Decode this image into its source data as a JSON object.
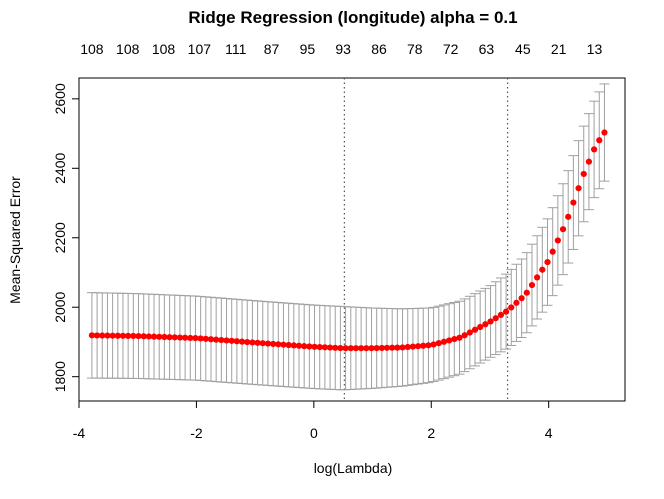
{
  "chart_data": {
    "type": "scatter",
    "title": "Ridge Regression (longitude) alpha = 0.1",
    "xlabel": "log(Lambda)",
    "ylabel": "Mean-Squared Error",
    "xlim": [
      -4.0,
      5.3
    ],
    "ylim": [
      1730,
      2660
    ],
    "x_ticks": [
      -4,
      -2,
      0,
      2,
      4
    ],
    "x_tick_labels": [
      "-4",
      "-2",
      "0",
      "2",
      "4"
    ],
    "y_ticks": [
      1800,
      2000,
      2200,
      2400,
      2600
    ],
    "y_tick_labels": [
      "1800",
      "2000",
      "2200",
      "2400",
      "2600"
    ],
    "top_axis": {
      "positions": [
        -3.78,
        -3.17,
        -2.56,
        -1.95,
        -1.33,
        -0.72,
        -0.11,
        0.5,
        1.11,
        1.72,
        2.33,
        2.94,
        3.56,
        4.17,
        4.78
      ],
      "labels": [
        "108",
        "108",
        "108",
        "107",
        "111",
        "87",
        "95",
        "93",
        "86",
        "78",
        "72",
        "63",
        "45",
        "21",
        "13"
      ]
    },
    "vlines": [
      {
        "name": "lambda.min",
        "x": 0.52
      },
      {
        "name": "lambda.1se",
        "x": 3.3
      }
    ],
    "series": [
      {
        "name": "cv-mse",
        "color": "#ff0000",
        "error_color": "#a0a0a0",
        "x_start": -3.78,
        "x_end": 4.95,
        "n_points": 100,
        "anchors": [
          [
            -3.78,
            1919
          ],
          [
            -3.0,
            1917
          ],
          [
            -2.0,
            1911
          ],
          [
            -1.0,
            1898
          ],
          [
            0.0,
            1886
          ],
          [
            0.5,
            1882
          ],
          [
            1.0,
            1882
          ],
          [
            1.5,
            1884
          ],
          [
            2.0,
            1891
          ],
          [
            2.5,
            1913
          ],
          [
            3.0,
            1958
          ],
          [
            3.3,
            1990
          ],
          [
            3.6,
            2035
          ],
          [
            4.0,
            2135
          ],
          [
            4.3,
            2245
          ],
          [
            4.6,
            2385
          ],
          [
            4.8,
            2465
          ],
          [
            4.95,
            2503
          ]
        ],
        "error_anchors": [
          [
            -3.78,
            123
          ],
          [
            -2.0,
            121
          ],
          [
            0.5,
            120
          ],
          [
            2.0,
            107
          ],
          [
            3.0,
            103
          ],
          [
            3.5,
            112
          ],
          [
            4.0,
            125
          ],
          [
            4.5,
            137
          ],
          [
            4.95,
            140
          ]
        ]
      }
    ]
  }
}
